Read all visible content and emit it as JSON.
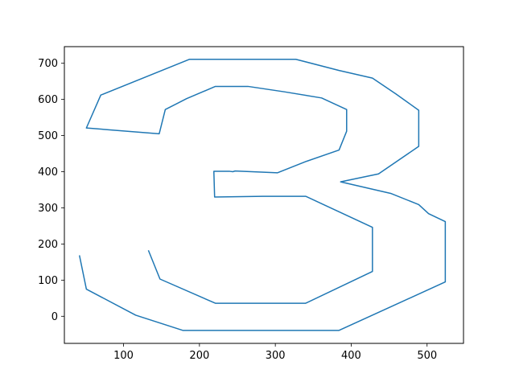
{
  "chart_data": {
    "type": "line",
    "title": "",
    "xlabel": "",
    "ylabel": "",
    "xlim": [
      22,
      548
    ],
    "ylim": [
      -75,
      746
    ],
    "x_ticks": [
      100,
      200,
      300,
      400,
      500
    ],
    "y_ticks": [
      0,
      100,
      200,
      300,
      400,
      500,
      600,
      700
    ],
    "grid": false,
    "legend": "none",
    "series": [
      {
        "name": "series-1",
        "color": "#1f77b4",
        "x": [
          42,
          51,
          116,
          178,
          384,
          524,
          524,
          502,
          489,
          452,
          386,
          436,
          489,
          489,
          459,
          428,
          384,
          327,
          187,
          70,
          51,
          147,
          155,
          183,
          221,
          264,
          312,
          361,
          394,
          394,
          384,
          340,
          303,
          247,
          244,
          240,
          219,
          220,
          283,
          340,
          383,
          428,
          428,
          340,
          221,
          148,
          133
        ],
        "y": [
          167,
          75,
          3,
          -39,
          -39,
          95,
          262,
          284,
          309,
          340,
          372,
          394,
          470,
          570,
          615,
          659,
          680,
          711,
          711,
          612,
          521,
          505,
          572,
          602,
          636,
          636,
          621,
          604,
          572,
          512,
          460,
          428,
          397,
          402,
          400,
          401,
          401,
          330,
          332,
          332,
          290,
          246,
          124,
          36,
          36,
          103,
          181
        ]
      }
    ]
  }
}
